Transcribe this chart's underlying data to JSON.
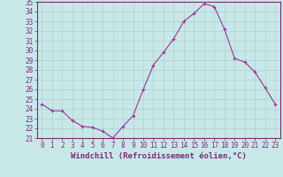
{
  "x": [
    0,
    1,
    2,
    3,
    4,
    5,
    6,
    7,
    8,
    9,
    10,
    11,
    12,
    13,
    14,
    15,
    16,
    17,
    18,
    19,
    20,
    21,
    22,
    23
  ],
  "y": [
    24.5,
    23.8,
    23.8,
    22.8,
    22.2,
    22.1,
    21.7,
    21.0,
    22.2,
    23.3,
    26.0,
    28.5,
    29.8,
    31.2,
    33.0,
    33.8,
    34.8,
    34.5,
    32.2,
    29.2,
    28.8,
    27.8,
    26.2,
    24.5
  ],
  "line_color": "#993399",
  "marker": "+",
  "bg_color": "#c8e8e8",
  "grid_color": "#b0d0d0",
  "xlabel": "Windchill (Refroidissement éolien,°C)",
  "ylim": [
    21,
    35
  ],
  "xlim_min": -0.5,
  "xlim_max": 23.5,
  "yticks": [
    21,
    22,
    23,
    24,
    25,
    26,
    27,
    28,
    29,
    30,
    31,
    32,
    33,
    34,
    35
  ],
  "xticks": [
    0,
    1,
    2,
    3,
    4,
    5,
    6,
    7,
    8,
    9,
    10,
    11,
    12,
    13,
    14,
    15,
    16,
    17,
    18,
    19,
    20,
    21,
    22,
    23
  ],
  "tick_color": "#7a2a7a",
  "label_color": "#7a2a7a",
  "spine_color": "#7a2a7a",
  "xlabel_fontsize": 6.5,
  "tick_fontsize": 5.5,
  "linewidth": 0.8,
  "markersize": 3.5,
  "markeredgewidth": 0.8
}
